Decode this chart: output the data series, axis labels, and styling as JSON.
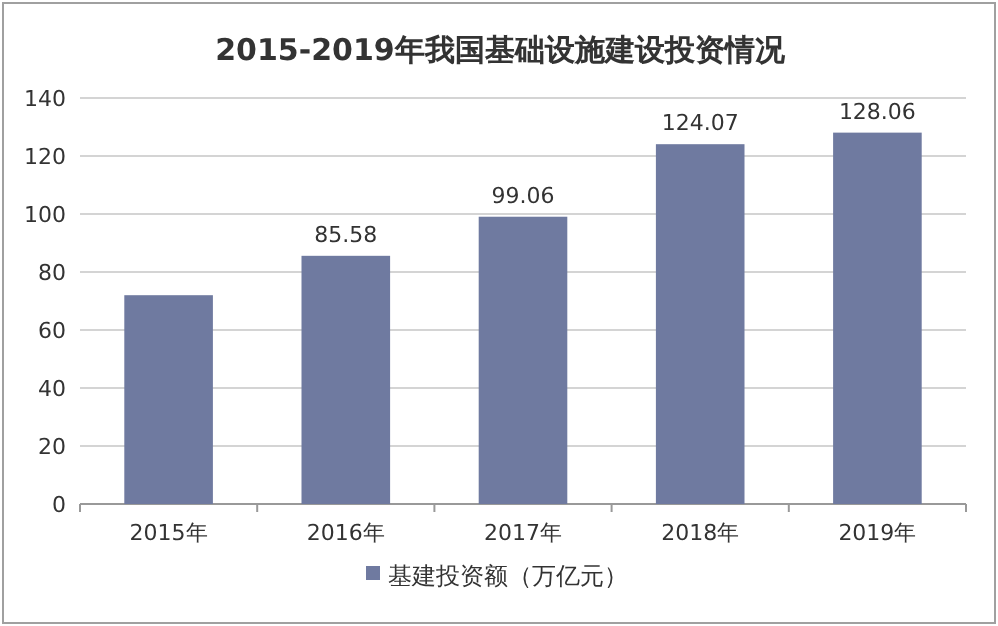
{
  "chart_data": {
    "type": "bar",
    "title": "2015-2019年我国基础设施建设投资情况",
    "categories": [
      "2015年",
      "2016年",
      "2017年",
      "2018年",
      "2019年"
    ],
    "series": [
      {
        "name": "基建投资额（万亿元）",
        "color": "#6f7aa0",
        "values": [
          72,
          85.58,
          99.06,
          124.07,
          128.06
        ],
        "value_labels": [
          null,
          "85.58",
          "99.06",
          "124.07",
          "128.06"
        ]
      }
    ],
    "ylim": [
      0,
      140
    ],
    "yticks": [
      0,
      20,
      40,
      60,
      80,
      100,
      120,
      140
    ],
    "grid": "y",
    "legend": "bottom"
  }
}
